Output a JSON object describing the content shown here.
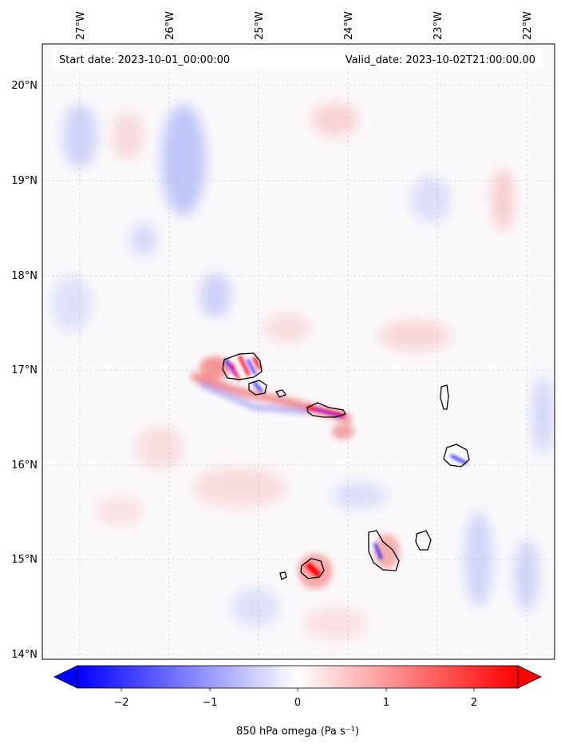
{
  "header": {
    "start_date": "Start date: 2023-10-01_00:00:00",
    "valid_date": "Valid_date: 2023-10-02T21:00:00.00"
  },
  "map": {
    "lon_ticks": [
      "27°W",
      "26°W",
      "25°W",
      "24°W",
      "23°W",
      "22°W"
    ],
    "lat_ticks": [
      "20°N",
      "19°N",
      "18°N",
      "17°N",
      "16°N",
      "15°N",
      "14°N"
    ],
    "gridlines": true,
    "field_colors": {
      "negative": "#0000ff",
      "zero": "#ffffff",
      "positive": "#ff0000"
    }
  },
  "colorbar": {
    "ticks": [
      "−2",
      "−1",
      "0",
      "1",
      "2"
    ],
    "label": "850 hPa omega (Pa s⁻¹)",
    "range": [
      -2.6,
      2.6
    ],
    "extend": "both"
  }
}
